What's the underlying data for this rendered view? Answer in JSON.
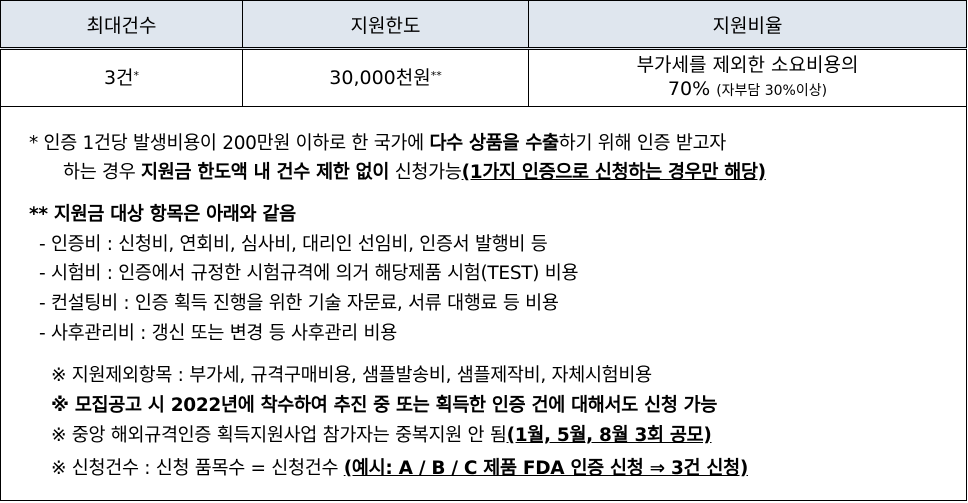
{
  "table": {
    "headers": [
      "최대건수",
      "지원한도",
      "지원비율"
    ],
    "max_count": "3건",
    "max_count_mark": "*",
    "limit": "30,000천원",
    "limit_mark": "**",
    "ratio_line1": "부가세를 제외한 소요비용의",
    "ratio_value": "70%",
    "ratio_note": "(자부담 30%이상)"
  },
  "notes": [
    {
      "segs": [
        [
          "",
          "* 인증 1건당 발생비용이 200만원 이하로 한 국가에 "
        ],
        [
          "b",
          "다수 상품을 수출"
        ],
        [
          "",
          "하기 위해 인증 받고자"
        ]
      ]
    },
    {
      "segs": [
        [
          "",
          "하는 경우 "
        ],
        [
          "b",
          "지원금 한도액 내 건수 제한 없이"
        ],
        [
          "",
          " 신청가능"
        ],
        [
          "u",
          "(1가지 인증으로 신청하는 경우만 해당)"
        ]
      ]
    },
    {
      "segs": [
        [
          "b",
          "** 지원금 대상 항목은 아래와 같음"
        ]
      ]
    },
    {
      "segs": [
        [
          "",
          "- 인증비 : 신청비, 연회비, 심사비, 대리인 선임비, 인증서 발행비 등"
        ]
      ]
    },
    {
      "segs": [
        [
          "",
          "- 시험비 : 인증에서 규정한 시험규격에 의거 해당제품 시험(TEST) 비용"
        ]
      ]
    },
    {
      "segs": [
        [
          "",
          "- 컨설팅비 : 인증 획득 진행을 위한 기술 자문료, 서류 대행료 등 비용"
        ]
      ]
    },
    {
      "segs": [
        [
          "",
          "- 사후관리비 : 갱신 또는 변경 등 사후관리 비용"
        ]
      ]
    },
    {
      "segs": [
        [
          "",
          "※  지원제외항목 : 부가세, 규격구매비용, 샘플발송비, 샘플제작비, 자체시험비용"
        ]
      ]
    },
    {
      "segs": [
        [
          "b",
          "※  모집공고 시 2022년에 착수하여 추진 중 또는 획득한 인증 건에 대해서도 신청 가능"
        ]
      ]
    },
    {
      "segs": [
        [
          "",
          "※  중앙 해외규격인증 획득지원사업 참가자는 중복지원 안 됨"
        ],
        [
          "u",
          "(1월, 5월, 8월 3회 공모)"
        ]
      ]
    },
    {
      "segs": [
        [
          "",
          "※  신청건수 : 신청 품목수 = 신청건수 "
        ],
        [
          "u",
          "(예시: A / B / C 제품 FDA 인증 신청 ⇒ 3건 신청)"
        ]
      ]
    }
  ]
}
